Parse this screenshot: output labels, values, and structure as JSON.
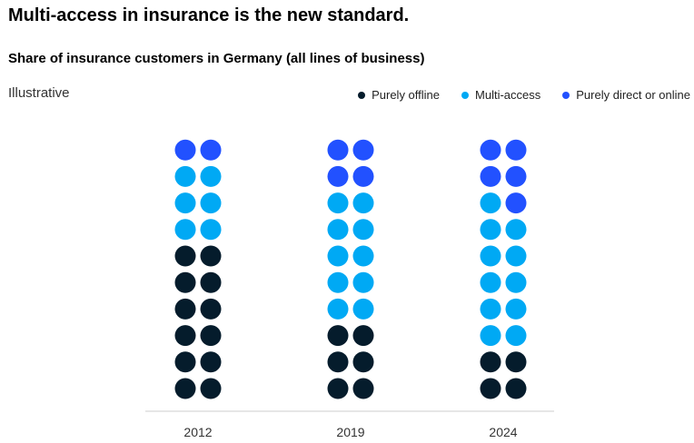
{
  "chart_data": {
    "type": "dot-matrix",
    "title": "Multi-access in insurance is the new standard.",
    "subtitle": "Share of insurance customers in Germany (all lines of business)",
    "note": "Illustrative",
    "legend_placement": "top-right",
    "categories": [
      "2012",
      "2019",
      "2024"
    ],
    "dots_per_column": 20,
    "series": [
      {
        "name": "Purely offline",
        "color": "#051c2c",
        "values": [
          12,
          6,
          4
        ]
      },
      {
        "name": "Multi-access",
        "color": "#00a9f4",
        "values": [
          6,
          10,
          11
        ]
      },
      {
        "name": "Purely direct or online",
        "color": "#2251ff",
        "values": [
          2,
          4,
          5
        ]
      }
    ]
  }
}
